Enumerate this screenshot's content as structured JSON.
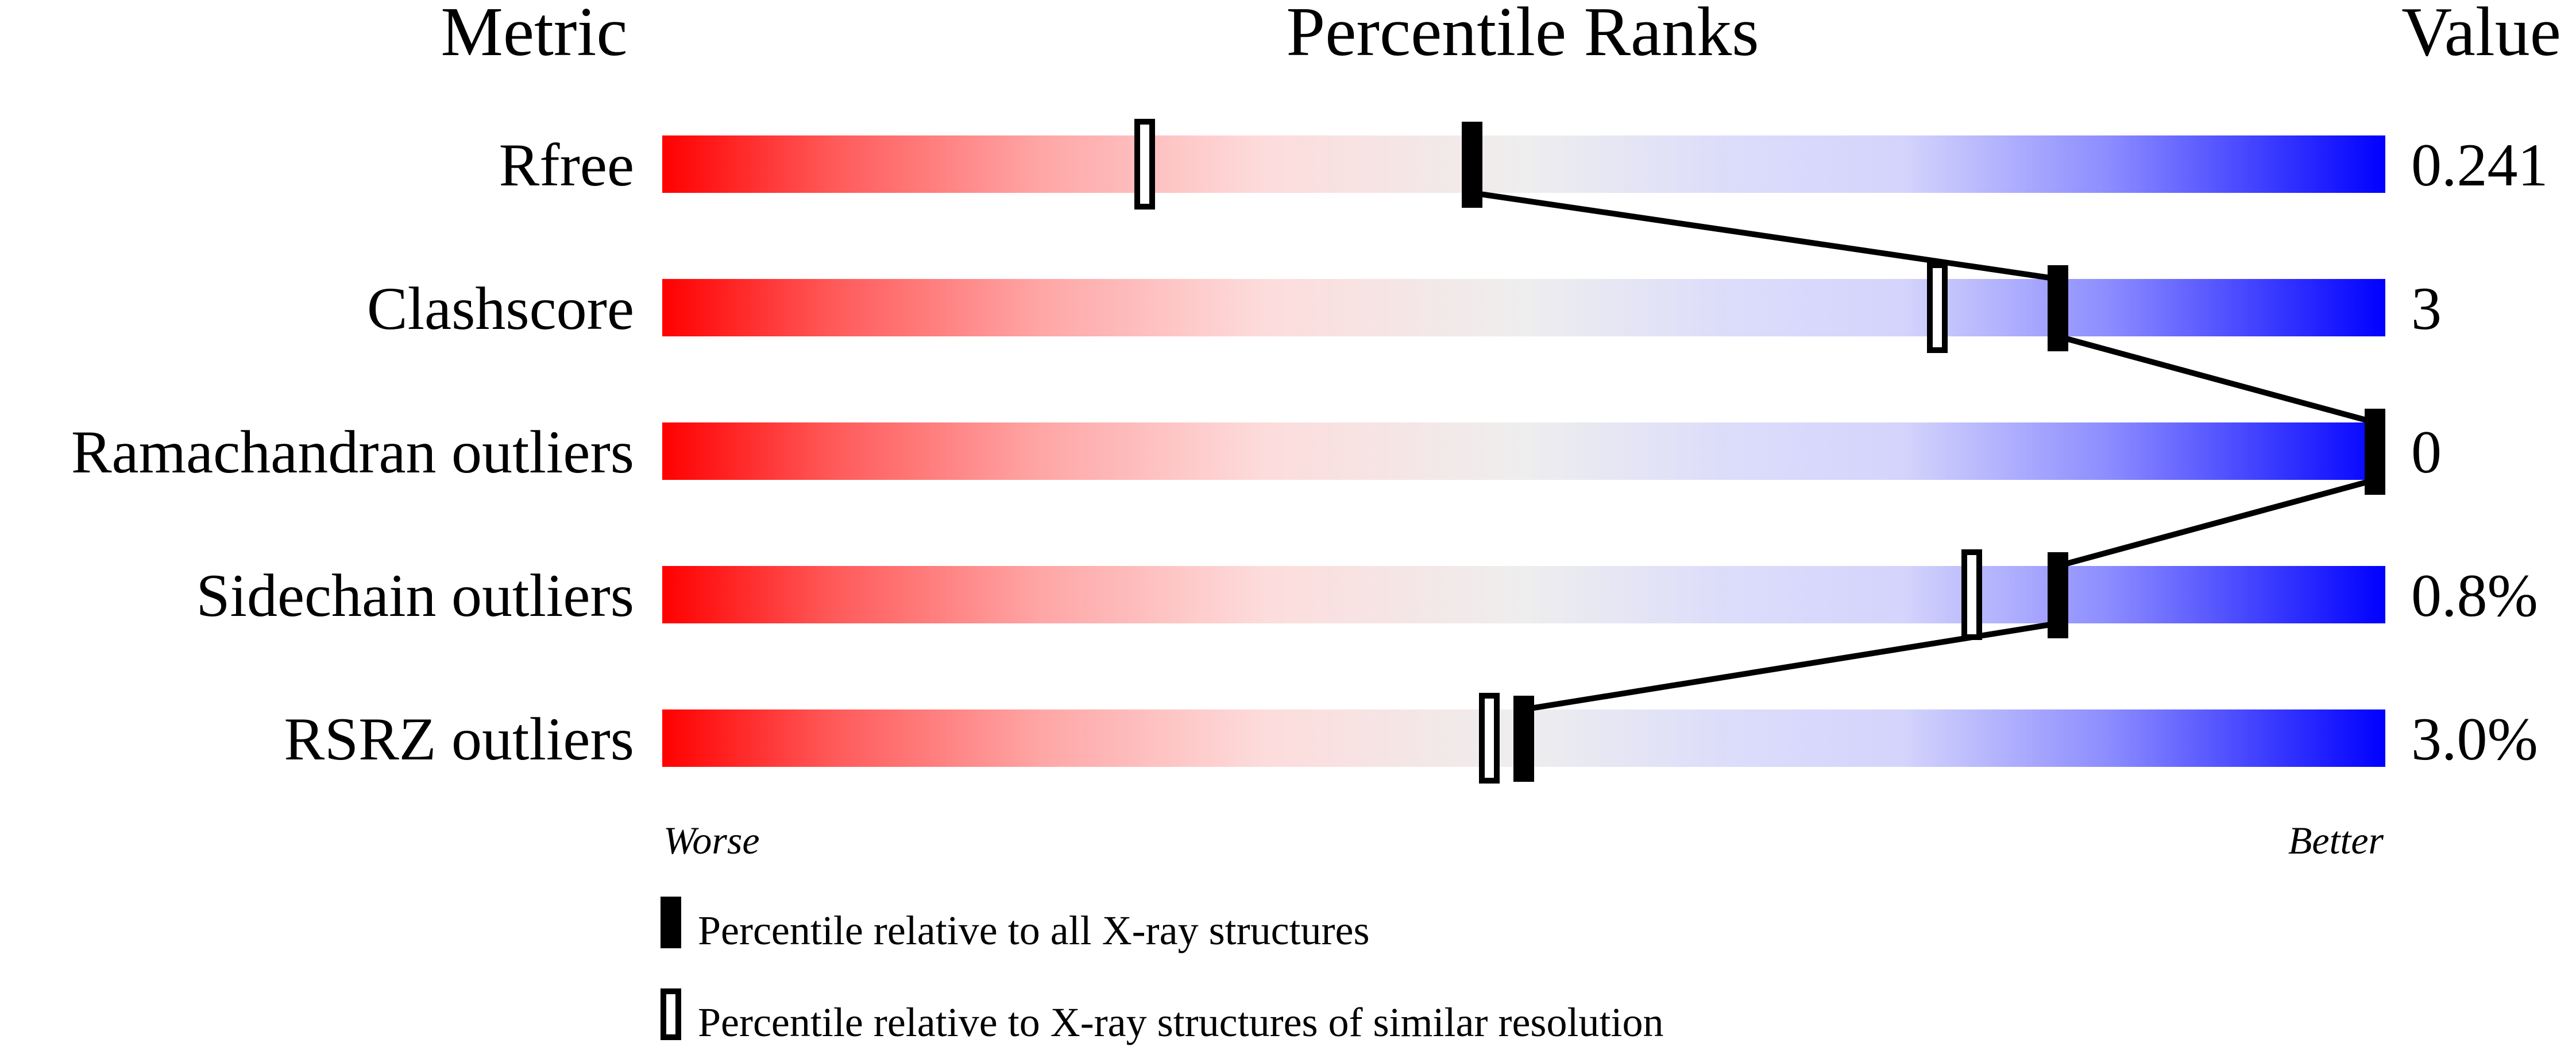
{
  "chart_data": {
    "type": "percentile-bar",
    "headers": {
      "metric": "Metric",
      "percentile": "Percentile Ranks",
      "value": "Value"
    },
    "xlim": [
      0,
      100
    ],
    "metrics": [
      {
        "name": "Rfree",
        "value": "0.241",
        "percentile_all": 47,
        "percentile_similar": 28
      },
      {
        "name": "Clashscore",
        "value": "3",
        "percentile_all": 81,
        "percentile_similar": 74
      },
      {
        "name": "Ramachandran outliers",
        "value": "0",
        "percentile_all": 100,
        "percentile_similar": 100
      },
      {
        "name": "Sidechain outliers",
        "value": "0.8%",
        "percentile_all": 81,
        "percentile_similar": 76
      },
      {
        "name": "RSRZ outliers",
        "value": "3.0%",
        "percentile_all": 50,
        "percentile_similar": 48
      }
    ],
    "axis_labels": {
      "left": "Worse",
      "right": "Better"
    },
    "legend": [
      {
        "marker": "filled",
        "label": "Percentile relative to all X-ray structures"
      },
      {
        "marker": "open",
        "label": "Percentile relative to X-ray structures of similar resolution"
      }
    ],
    "colors": {
      "worse": "#ff0000",
      "middle": "#eeeeee",
      "better": "#0000ff",
      "marker": "#000000"
    }
  }
}
